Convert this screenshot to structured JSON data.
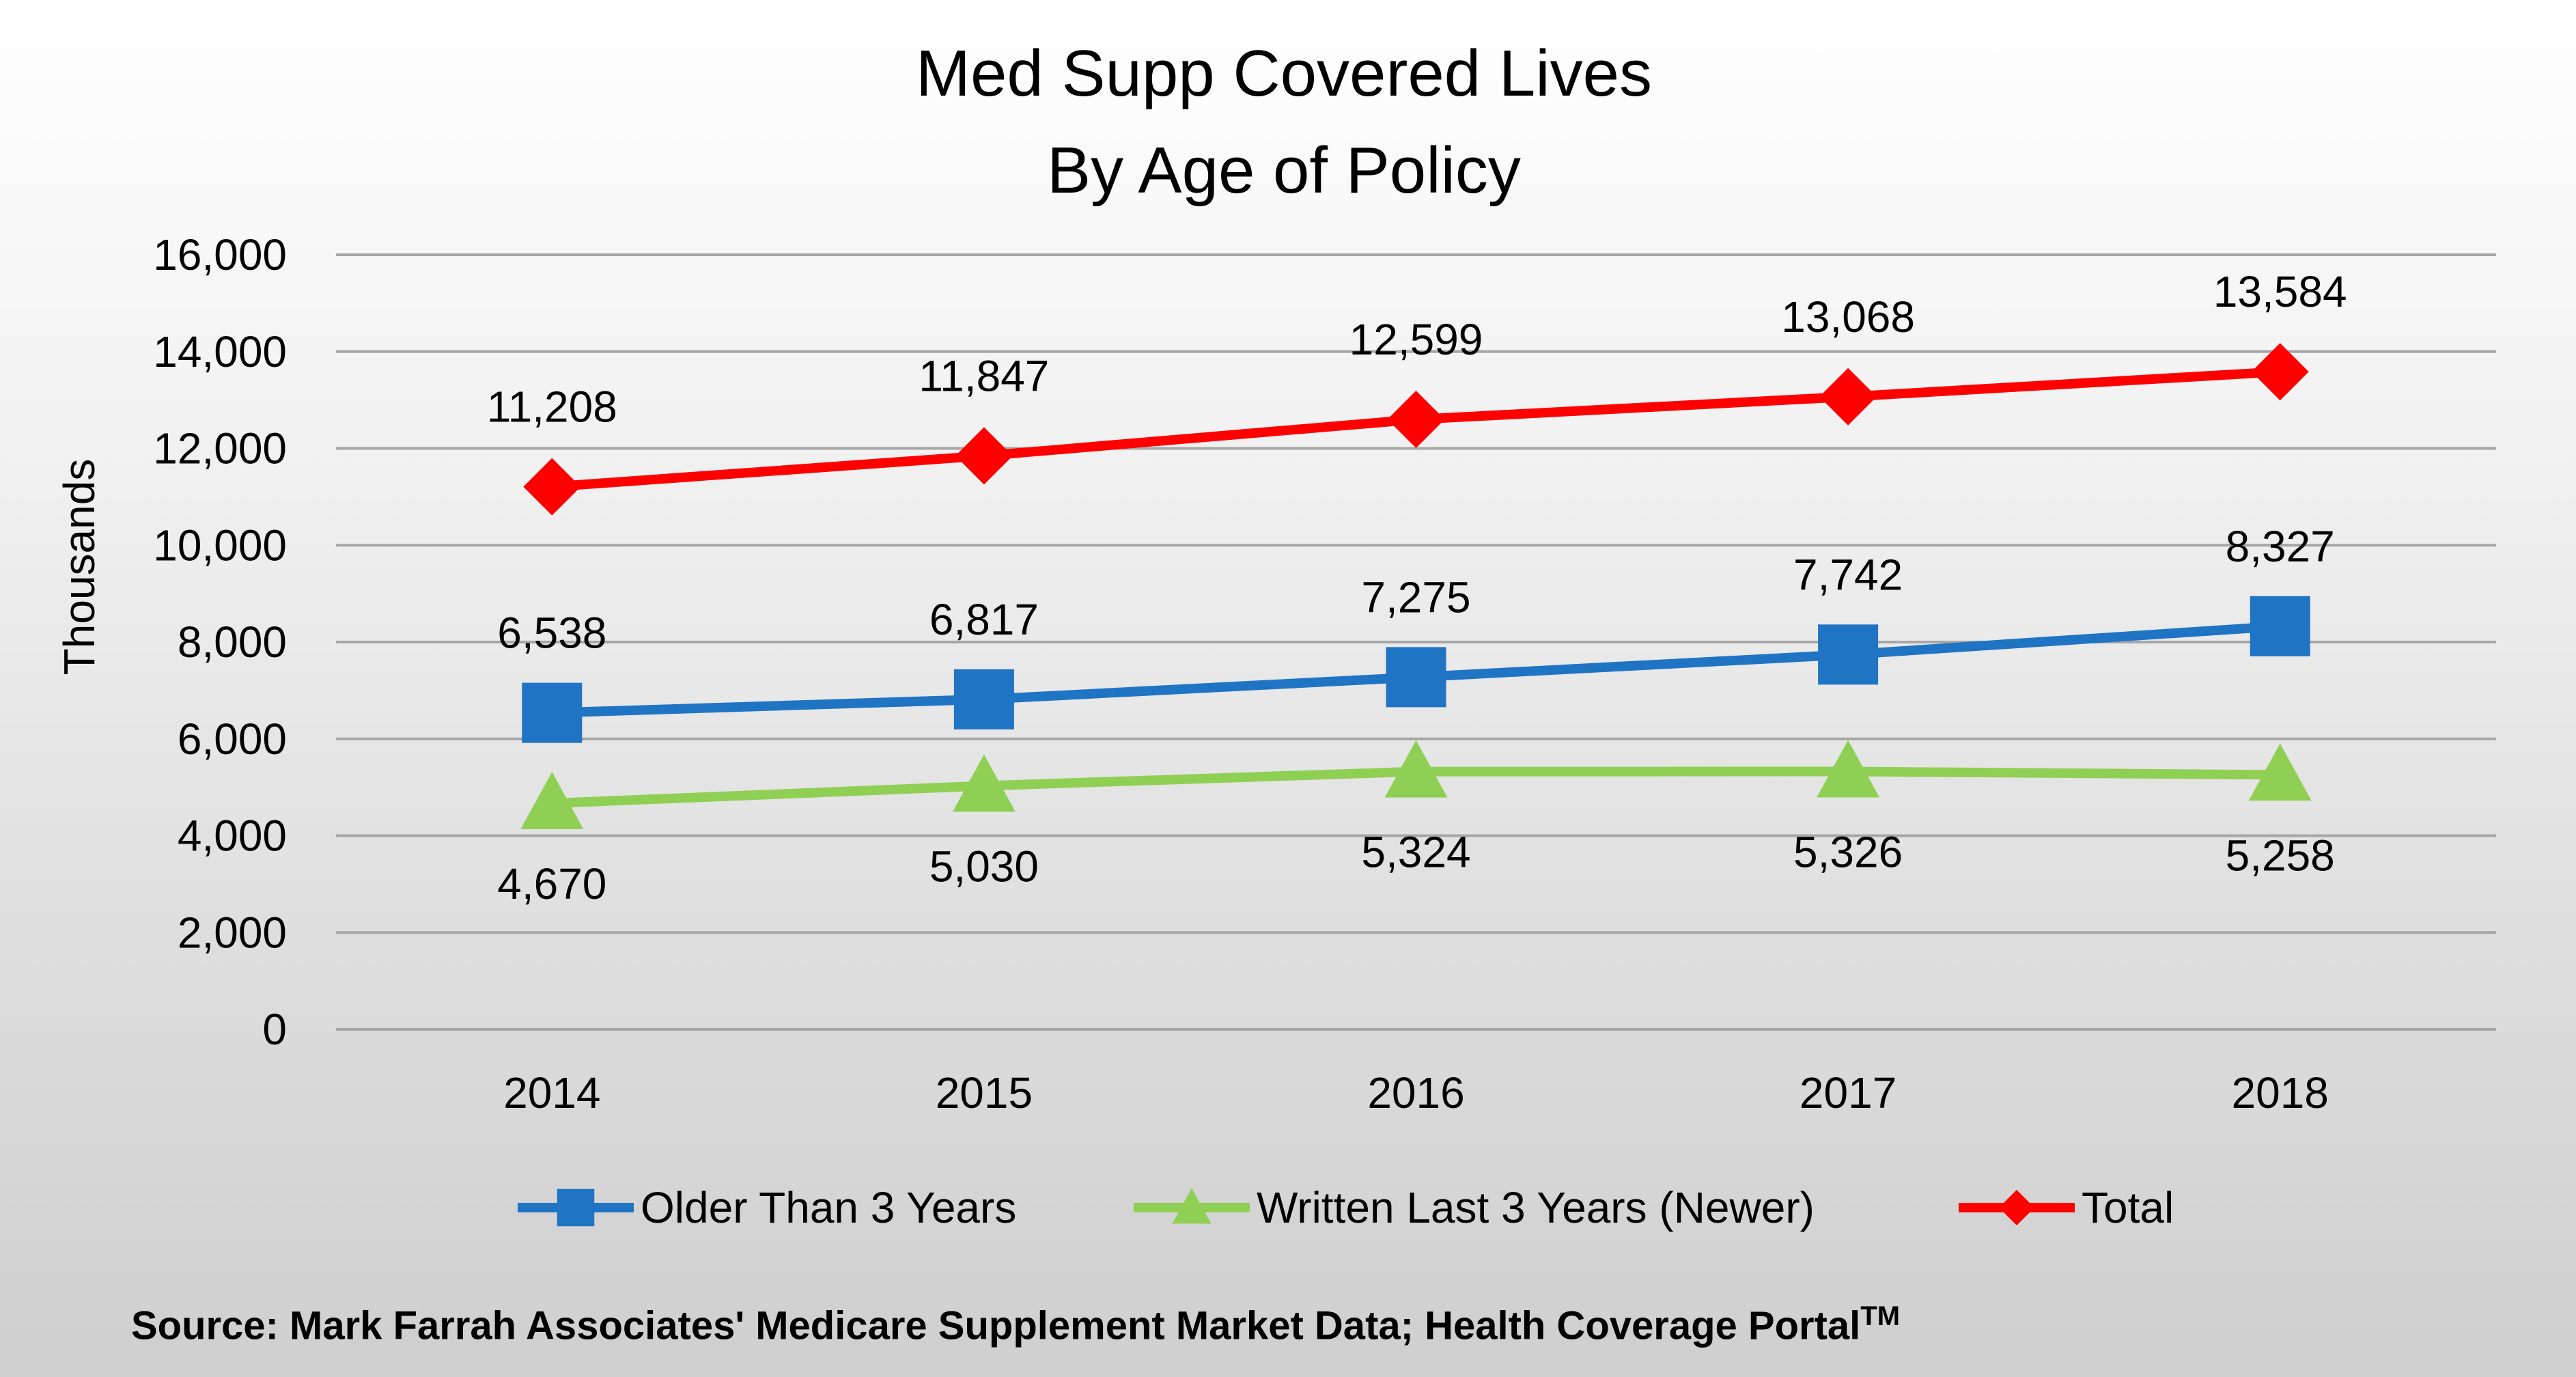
{
  "chart_data": {
    "type": "line",
    "title": [
      "Med Supp Covered Lives",
      "By Age of Policy"
    ],
    "ylabel": "Thousands",
    "xlabel": "",
    "ylim": [
      0,
      16000
    ],
    "ytick_step": 2000,
    "yticks": [
      "0",
      "2,000",
      "4,000",
      "6,000",
      "8,000",
      "10,000",
      "12,000",
      "14,000",
      "16,000"
    ],
    "grid": true,
    "legend_position": "bottom",
    "categories": [
      "2014",
      "2015",
      "2016",
      "2017",
      "2018"
    ],
    "series": [
      {
        "name": "Older Than 3 Years",
        "color": "#1f74c4",
        "marker": "square",
        "values": [
          6538,
          6817,
          7275,
          7742,
          8327
        ],
        "labels": [
          "6,538",
          "6,817",
          "7,275",
          "7,742",
          "8,327"
        ],
        "label_position": "above"
      },
      {
        "name": "Written Last 3 Years (Newer)",
        "color": "#8fd054",
        "marker": "triangle",
        "values": [
          4670,
          5030,
          5324,
          5326,
          5258
        ],
        "labels": [
          "4,670",
          "5,030",
          "5,324",
          "5,326",
          "5,258"
        ],
        "label_position": "below"
      },
      {
        "name": "Total",
        "color": "#ff0000",
        "marker": "diamond",
        "values": [
          11208,
          11847,
          12599,
          13068,
          13584
        ],
        "labels": [
          "11,208",
          "11,847",
          "12,599",
          "13,068",
          "13,584"
        ],
        "label_position": "above"
      }
    ]
  },
  "source": {
    "text": "Source:  Mark Farrah Associates' Medicare Supplement Market Data; Health Coverage Portal",
    "trademark": "TM"
  }
}
